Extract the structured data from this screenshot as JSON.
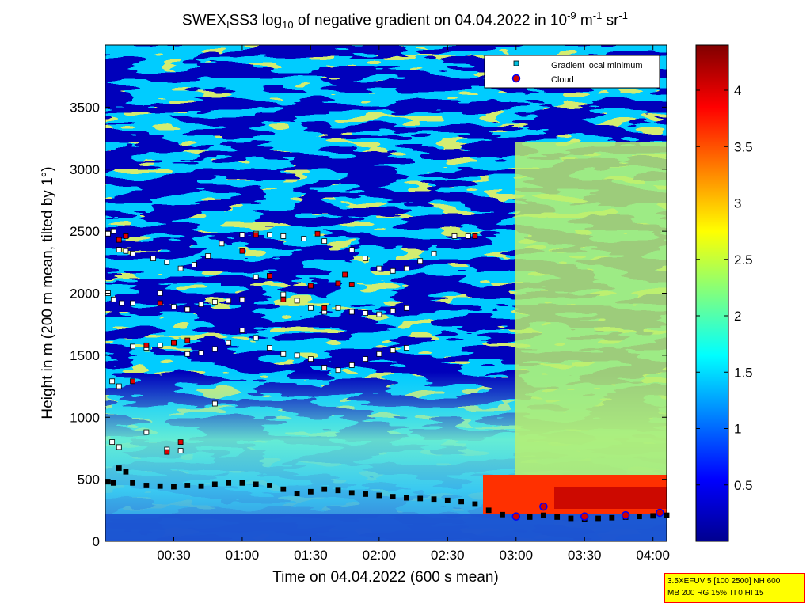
{
  "title": {
    "prefix": "SWEX",
    "sub1": "I",
    "mid1": "SS3 log",
    "sub2": "10",
    "mid2": " of negative gradient on 04.04.2022 in 10",
    "sup1": "-9",
    "mid3": " m",
    "sup2": "-1",
    "mid4": " sr",
    "sup3": "-1"
  },
  "info_box": {
    "line1": "3.5XEFUV 5 [100 2500] NH 600",
    "line2": "MB 200 RG 15% TI 0 HI 15"
  },
  "chart_data": {
    "type": "heatmap",
    "xlabel": "Time on 04.04.2022 (600 s mean)",
    "ylabel": "Height in m (200 m mean, tilted by 1°)",
    "xlim_hours": [
      0.0,
      4.1
    ],
    "ylim": [
      0,
      4000
    ],
    "x_ticks": [
      "00:30",
      "01:00",
      "01:30",
      "02:00",
      "02:30",
      "03:00",
      "03:30",
      "04:00"
    ],
    "x_tick_hours": [
      0.5,
      1.0,
      1.5,
      2.0,
      2.5,
      3.0,
      3.5,
      4.0
    ],
    "y_ticks": [
      0,
      500,
      1000,
      1500,
      2000,
      2500,
      3000,
      3500
    ],
    "colorbar": {
      "range": [
        0,
        4.4
      ],
      "ticks": [
        0.5,
        1,
        1.5,
        2,
        2.5,
        3,
        3.5,
        4
      ],
      "colormap": "jet"
    },
    "legend": {
      "placement": "top-right",
      "entries": [
        "Gradient local minimum",
        "Cloud"
      ]
    },
    "series": [
      {
        "name": "Gradient local minimum",
        "points": [
          [
            0.02,
            480
          ],
          [
            0.06,
            470
          ],
          [
            0.1,
            590
          ],
          [
            0.15,
            560
          ],
          [
            0.2,
            470
          ],
          [
            0.3,
            450
          ],
          [
            0.4,
            445
          ],
          [
            0.5,
            440
          ],
          [
            0.6,
            450
          ],
          [
            0.7,
            445
          ],
          [
            0.8,
            460
          ],
          [
            0.9,
            470
          ],
          [
            1.0,
            470
          ],
          [
            1.1,
            460
          ],
          [
            1.2,
            450
          ],
          [
            1.3,
            420
          ],
          [
            1.4,
            385
          ],
          [
            1.5,
            400
          ],
          [
            1.6,
            420
          ],
          [
            1.7,
            410
          ],
          [
            1.8,
            390
          ],
          [
            1.9,
            380
          ],
          [
            2.0,
            370
          ],
          [
            2.1,
            360
          ],
          [
            2.2,
            350
          ],
          [
            2.3,
            345
          ],
          [
            2.4,
            340
          ],
          [
            2.5,
            330
          ],
          [
            2.6,
            320
          ],
          [
            2.7,
            300
          ],
          [
            2.8,
            250
          ],
          [
            2.9,
            215
          ],
          [
            3.0,
            200
          ],
          [
            3.1,
            195
          ],
          [
            3.2,
            210
          ],
          [
            3.3,
            195
          ],
          [
            3.4,
            185
          ],
          [
            3.5,
            180
          ],
          [
            3.6,
            185
          ],
          [
            3.7,
            190
          ],
          [
            3.8,
            195
          ],
          [
            3.9,
            200
          ],
          [
            4.0,
            205
          ],
          [
            4.1,
            210
          ],
          [
            0.02,
            2480
          ],
          [
            0.06,
            2500
          ],
          [
            0.1,
            2350
          ],
          [
            0.15,
            2340
          ],
          [
            0.2,
            2320
          ],
          [
            0.35,
            2280
          ],
          [
            0.45,
            2250
          ],
          [
            0.55,
            2200
          ],
          [
            0.65,
            2230
          ],
          [
            0.75,
            2300
          ],
          [
            0.85,
            2400
          ],
          [
            1.0,
            2470
          ],
          [
            1.1,
            2480
          ],
          [
            1.2,
            2470
          ],
          [
            1.3,
            2460
          ],
          [
            1.45,
            2440
          ],
          [
            1.6,
            2420
          ],
          [
            1.8,
            2350
          ],
          [
            1.9,
            2280
          ],
          [
            2.0,
            2200
          ],
          [
            2.1,
            2180
          ],
          [
            2.2,
            2200
          ],
          [
            2.3,
            2260
          ],
          [
            2.4,
            2320
          ],
          [
            2.55,
            2460
          ],
          [
            2.65,
            2460
          ],
          [
            0.02,
            2000
          ],
          [
            0.06,
            1950
          ],
          [
            0.12,
            1920
          ],
          [
            0.2,
            1920
          ],
          [
            0.4,
            2000
          ],
          [
            0.5,
            1890
          ],
          [
            0.6,
            1870
          ],
          [
            0.7,
            1910
          ],
          [
            0.8,
            1930
          ],
          [
            0.9,
            1940
          ],
          [
            1.0,
            1950
          ],
          [
            1.1,
            2130
          ],
          [
            1.2,
            2140
          ],
          [
            1.3,
            1990
          ],
          [
            1.4,
            1940
          ],
          [
            1.5,
            1880
          ],
          [
            1.6,
            1850
          ],
          [
            1.7,
            1880
          ],
          [
            1.8,
            1850
          ],
          [
            1.9,
            1840
          ],
          [
            2.0,
            1830
          ],
          [
            2.1,
            1860
          ],
          [
            2.2,
            1880
          ],
          [
            0.05,
            1290
          ],
          [
            0.1,
            1250
          ],
          [
            0.2,
            1570
          ],
          [
            0.3,
            1560
          ],
          [
            0.4,
            1580
          ],
          [
            0.5,
            1600
          ],
          [
            0.6,
            1510
          ],
          [
            0.7,
            1520
          ],
          [
            0.8,
            1550
          ],
          [
            0.9,
            1600
          ],
          [
            1.0,
            1700
          ],
          [
            1.1,
            1640
          ],
          [
            1.2,
            1560
          ],
          [
            1.3,
            1510
          ],
          [
            1.4,
            1500
          ],
          [
            1.5,
            1470
          ],
          [
            1.6,
            1400
          ],
          [
            1.7,
            1380
          ],
          [
            1.8,
            1420
          ],
          [
            1.9,
            1470
          ],
          [
            2.0,
            1510
          ],
          [
            2.1,
            1540
          ],
          [
            2.2,
            1560
          ],
          [
            0.05,
            800
          ],
          [
            0.1,
            760
          ],
          [
            0.3,
            880
          ],
          [
            0.45,
            740
          ],
          [
            0.55,
            730
          ],
          [
            0.8,
            1110
          ]
        ]
      },
      {
        "name": "Cloud",
        "points": [
          [
            0.1,
            2430
          ],
          [
            0.15,
            2460
          ],
          [
            0.5,
            1600
          ],
          [
            0.6,
            1620
          ],
          [
            0.2,
            1290
          ],
          [
            0.3,
            1580
          ],
          [
            0.4,
            1920
          ],
          [
            1.0,
            2340
          ],
          [
            1.1,
            2470
          ],
          [
            1.2,
            2140
          ],
          [
            1.3,
            1950
          ],
          [
            1.5,
            2060
          ],
          [
            1.6,
            1880
          ],
          [
            1.7,
            2080
          ],
          [
            1.75,
            2150
          ],
          [
            1.8,
            2070
          ],
          [
            2.7,
            2460
          ],
          [
            0.45,
            720
          ],
          [
            0.55,
            800
          ],
          [
            3.0,
            200
          ],
          [
            3.2,
            280
          ],
          [
            3.5,
            200
          ],
          [
            3.8,
            210
          ],
          [
            4.05,
            230
          ],
          [
            1.55,
            2480
          ]
        ]
      }
    ]
  }
}
